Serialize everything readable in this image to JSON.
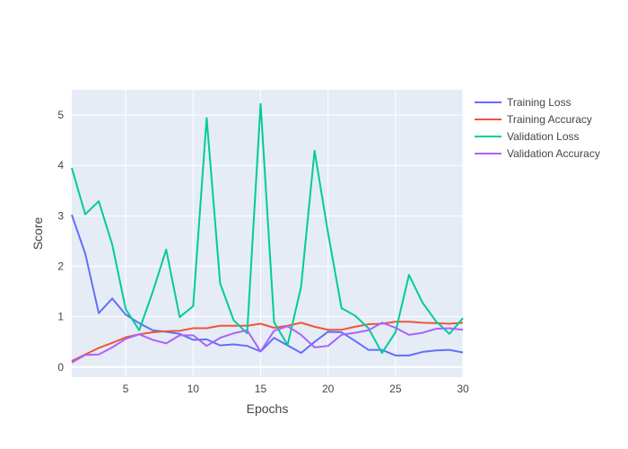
{
  "chart_data": {
    "type": "line",
    "title": "",
    "xlabel": "Epochs",
    "ylabel": "Score",
    "xlim": [
      1,
      30
    ],
    "ylim": [
      -0.2,
      5.5
    ],
    "xticks": [
      5,
      10,
      15,
      20,
      25,
      30
    ],
    "yticks": [
      0,
      1,
      2,
      3,
      4,
      5
    ],
    "grid": true,
    "legend_position": "top-right",
    "x": [
      1,
      2,
      3,
      4,
      5,
      6,
      7,
      8,
      9,
      10,
      11,
      12,
      13,
      14,
      15,
      16,
      17,
      18,
      19,
      20,
      21,
      22,
      23,
      24,
      25,
      26,
      27,
      28,
      29,
      30
    ],
    "series": [
      {
        "name": "Training Loss",
        "color": "#636efa",
        "values": [
          3.02,
          2.25,
          1.07,
          1.36,
          1.04,
          0.87,
          0.73,
          0.7,
          0.66,
          0.54,
          0.55,
          0.43,
          0.45,
          0.42,
          0.31,
          0.58,
          0.43,
          0.28,
          0.5,
          0.7,
          0.69,
          0.52,
          0.34,
          0.34,
          0.23,
          0.23,
          0.3,
          0.33,
          0.34,
          0.29
        ]
      },
      {
        "name": "Training Accuracy",
        "color": "#ef553b",
        "values": [
          0.12,
          0.25,
          0.38,
          0.48,
          0.59,
          0.65,
          0.69,
          0.71,
          0.72,
          0.77,
          0.77,
          0.82,
          0.82,
          0.82,
          0.86,
          0.78,
          0.82,
          0.88,
          0.8,
          0.74,
          0.74,
          0.8,
          0.85,
          0.86,
          0.9,
          0.9,
          0.88,
          0.87,
          0.86,
          0.88
        ]
      },
      {
        "name": "Validation Loss",
        "color": "#00cc96",
        "values": [
          3.95,
          3.03,
          3.29,
          2.43,
          1.15,
          0.73,
          1.49,
          2.33,
          0.99,
          1.21,
          4.94,
          1.66,
          0.93,
          0.67,
          5.22,
          0.89,
          0.44,
          1.59,
          4.29,
          2.66,
          1.17,
          1.02,
          0.77,
          0.28,
          0.69,
          1.83,
          1.28,
          0.91,
          0.66,
          0.97
        ]
      },
      {
        "name": "Validation Accuracy",
        "color": "#ab63fa",
        "values": [
          0.09,
          0.24,
          0.25,
          0.39,
          0.56,
          0.65,
          0.54,
          0.47,
          0.63,
          0.63,
          0.42,
          0.58,
          0.67,
          0.73,
          0.31,
          0.72,
          0.81,
          0.64,
          0.39,
          0.42,
          0.64,
          0.68,
          0.73,
          0.88,
          0.78,
          0.64,
          0.68,
          0.76,
          0.77,
          0.74
        ]
      }
    ]
  }
}
